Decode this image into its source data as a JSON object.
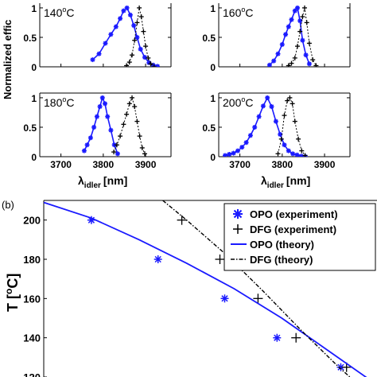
{
  "colors": {
    "opo": "#1a1aff",
    "dfg": "#000000",
    "axis": "#000000",
    "background": "#ffffff"
  },
  "top_figure": {
    "ylabel": "Normalized effic",
    "xlabel_main": "λ",
    "xlabel_sub": "idler",
    "xlabel_unit": "[nm]"
  },
  "bottom_figure": {
    "panel_label": "(b)",
    "ylabel": "T [",
    "ylabel_sup": "o",
    "ylabel_end": "C]"
  },
  "chart_data": [
    {
      "type": "line",
      "panel": "a1",
      "temp_main": "140",
      "temp_sup": "o",
      "temp_unit": "C",
      "xlim": [
        3650,
        3960
      ],
      "ylim": [
        0,
        1.08
      ],
      "yticks": [
        0,
        0.5,
        1
      ],
      "ytick_labels": [
        "0",
        "0.5",
        "1"
      ],
      "xticks": [
        3700,
        3800,
        3900
      ],
      "xtick_labels": [],
      "series": [
        {
          "style": "opo",
          "x": [
            3775,
            3790,
            3805,
            3818,
            3830,
            3840,
            3848,
            3856,
            3864,
            3872,
            3880,
            3888,
            3898,
            3908,
            3918,
            3928
          ],
          "y": [
            0.12,
            0.22,
            0.4,
            0.55,
            0.68,
            0.82,
            0.95,
            1.0,
            0.88,
            0.7,
            0.5,
            0.3,
            0.16,
            0.07,
            0.03,
            0.01
          ]
        },
        {
          "style": "dfg",
          "x": [
            3855,
            3862,
            3868,
            3874,
            3880,
            3885,
            3890,
            3895,
            3900,
            3906,
            3912,
            3920
          ],
          "y": [
            0.02,
            0.08,
            0.2,
            0.45,
            0.75,
            1.0,
            0.85,
            0.6,
            0.35,
            0.15,
            0.05,
            0.0
          ]
        }
      ]
    },
    {
      "type": "line",
      "panel": "a2",
      "temp_main": "160",
      "temp_sup": "o",
      "temp_unit": "C",
      "xlim": [
        3650,
        3960
      ],
      "ylim": [
        0,
        1.08
      ],
      "yticks": [
        0,
        0.5,
        1
      ],
      "ytick_labels": [
        "0",
        "0.5",
        "1"
      ],
      "xticks": [
        3700,
        3800,
        3900
      ],
      "xtick_labels": [],
      "series": [
        {
          "style": "opo",
          "x": [
            3770,
            3780,
            3790,
            3800,
            3808,
            3815,
            3822,
            3830,
            3836,
            3842,
            3848,
            3856,
            3864
          ],
          "y": [
            0.03,
            0.1,
            0.22,
            0.38,
            0.55,
            0.68,
            0.8,
            0.95,
            1.0,
            0.78,
            0.45,
            0.2,
            0.05
          ]
        },
        {
          "style": "dfg",
          "x": [
            3815,
            3822,
            3830,
            3836,
            3842,
            3848,
            3853,
            3858,
            3864,
            3872,
            3880
          ],
          "y": [
            0.02,
            0.06,
            0.15,
            0.35,
            0.6,
            0.85,
            1.0,
            0.75,
            0.4,
            0.12,
            0.02
          ]
        }
      ]
    },
    {
      "type": "line",
      "panel": "a3",
      "temp_main": "180",
      "temp_sup": "o",
      "temp_unit": "C",
      "xlim": [
        3650,
        3960
      ],
      "ylim": [
        0,
        1.08
      ],
      "yticks": [
        0,
        0.5,
        1
      ],
      "ytick_labels": [
        "0",
        "0.5",
        "1"
      ],
      "xticks": [
        3700,
        3800,
        3900
      ],
      "xtick_labels": [
        "3700",
        "3800",
        "3900"
      ],
      "series": [
        {
          "style": "opo",
          "x": [
            3755,
            3762,
            3770,
            3778,
            3785,
            3792,
            3798,
            3804,
            3810,
            3818,
            3826,
            3834
          ],
          "y": [
            0.1,
            0.2,
            0.32,
            0.5,
            0.68,
            0.85,
            1.0,
            0.9,
            0.68,
            0.45,
            0.2,
            0.05
          ]
        },
        {
          "style": "dfg",
          "x": [
            3825,
            3832,
            3840,
            3848,
            3855,
            3862,
            3868,
            3874,
            3880,
            3886,
            3892,
            3898
          ],
          "y": [
            0.08,
            0.2,
            0.35,
            0.55,
            0.72,
            0.9,
            1.0,
            0.85,
            0.6,
            0.35,
            0.15,
            0.05
          ]
        }
      ]
    },
    {
      "type": "line",
      "panel": "a4",
      "temp_main": "200",
      "temp_sup": "o",
      "temp_unit": "C",
      "xlim": [
        3650,
        3960
      ],
      "ylim": [
        0,
        1.08
      ],
      "yticks": [
        0,
        0.5,
        1
      ],
      "ytick_labels": [
        "0",
        "0.5",
        "1"
      ],
      "xticks": [
        3700,
        3800,
        3900
      ],
      "xtick_labels": [
        "3700",
        "3800",
        "3900"
      ],
      "series": [
        {
          "style": "opo",
          "x": [
            3665,
            3675,
            3685,
            3695,
            3705,
            3715,
            3725,
            3735,
            3745,
            3755,
            3765,
            3775,
            3785,
            3795,
            3805,
            3815,
            3825,
            3835,
            3845,
            3855
          ],
          "y": [
            0.02,
            0.04,
            0.06,
            0.1,
            0.16,
            0.24,
            0.36,
            0.5,
            0.68,
            0.86,
            1.0,
            0.85,
            0.6,
            0.38,
            0.2,
            0.1,
            0.05,
            0.03,
            0.01,
            0.0
          ]
        },
        {
          "style": "dfg",
          "x": [
            3790,
            3798,
            3805,
            3812,
            3818,
            3824,
            3830,
            3838,
            3846,
            3854
          ],
          "y": [
            0.05,
            0.3,
            0.7,
            0.95,
            1.0,
            0.9,
            0.6,
            0.3,
            0.1,
            0.02
          ]
        }
      ]
    },
    {
      "type": "line",
      "panel": "b",
      "xlim": [
        3650,
        4000
      ],
      "ylim": [
        120,
        210
      ],
      "yticks": [
        120,
        140,
        160,
        180,
        200
      ],
      "ytick_labels": [
        "120",
        "140",
        "160",
        "180",
        "200"
      ],
      "legend_position": "top-right",
      "series": [
        {
          "name": "OPO (experiment)",
          "style": "opo-marker",
          "x": [
            3700,
            3770,
            3840,
            3895,
            3962
          ],
          "y": [
            200,
            180,
            160,
            140,
            125
          ]
        },
        {
          "name": "DFG (experiment)",
          "style": "dfg-marker",
          "x": [
            3795,
            3835,
            3875,
            3915,
            3968
          ],
          "y": [
            200,
            180,
            160,
            140,
            125
          ]
        },
        {
          "name": "OPO (theory)",
          "style": "opo-line",
          "x": [
            3650,
            3700,
            3750,
            3800,
            3850,
            3900,
            3950,
            4000
          ],
          "y": [
            209,
            201,
            190,
            178,
            165,
            150,
            133,
            116
          ]
        },
        {
          "name": "DFG (theory)",
          "style": "dfg-line",
          "x": [
            3775,
            3800,
            3840,
            3880,
            3920,
            3960,
            3990
          ],
          "y": [
            210,
            200,
            183,
            164,
            144,
            125,
            112
          ]
        }
      ]
    }
  ]
}
